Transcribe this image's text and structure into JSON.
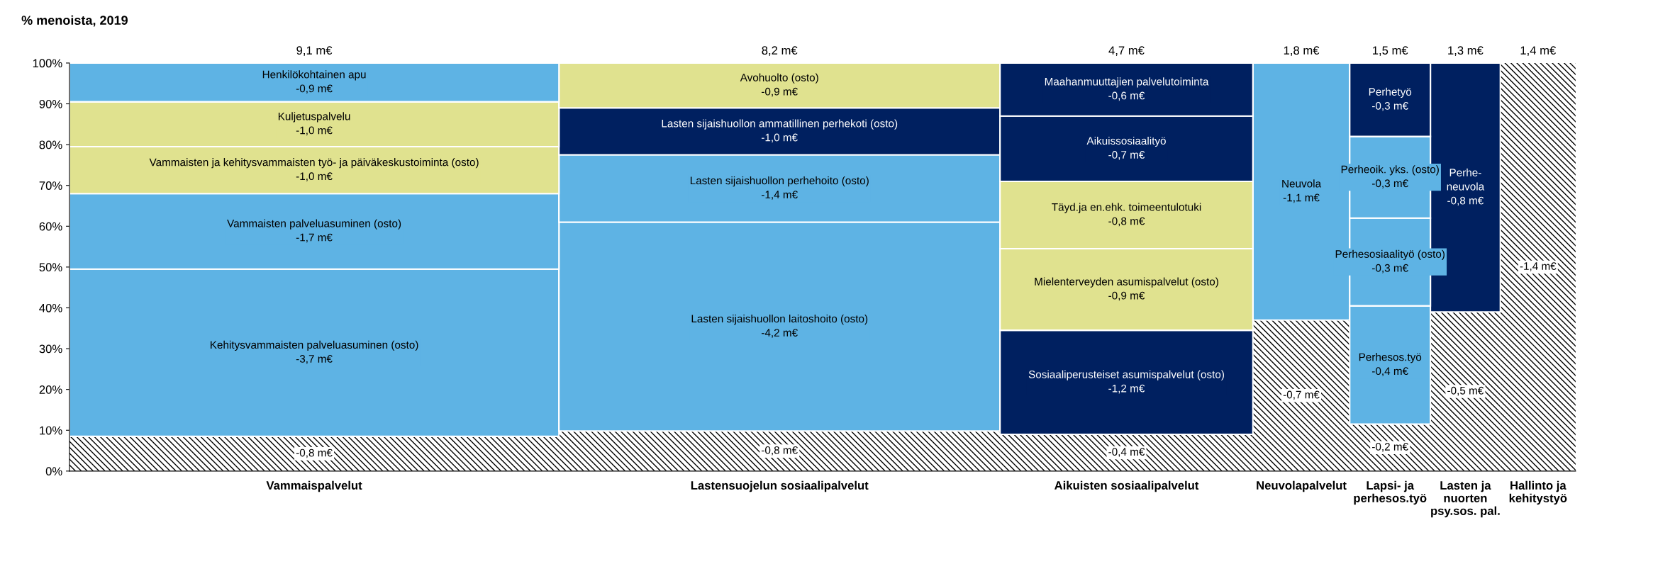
{
  "chart_data": {
    "type": "bar",
    "stacked": true,
    "title": "% menoista, 2019",
    "categories": [
      "Vammaispalvelut",
      "Lastensuojelun sosiaalipalvelut",
      "Aikuisten sosiaalipalvelut",
      "Neuvolapalvelut",
      "Lapsi- ja\nperhesos.työ",
      "Lasten ja\nnuorten\npsy.sos. pal.",
      "Hallinto ja\nkehitystyö"
    ],
    "ylim": [
      0,
      100
    ],
    "yticks": [
      {
        "value": 0,
        "label": "0%"
      },
      {
        "value": 10,
        "label": "10%"
      },
      {
        "value": 20,
        "label": "20%"
      },
      {
        "value": 30,
        "label": "30%"
      },
      {
        "value": 40,
        "label": "40%"
      },
      {
        "value": 50,
        "label": "50%"
      },
      {
        "value": 60,
        "label": "60%"
      },
      {
        "value": 70,
        "label": "70%"
      },
      {
        "value": 80,
        "label": "80%"
      },
      {
        "value": 90,
        "label": "90%"
      },
      {
        "value": 100,
        "label": "100%"
      }
    ],
    "series": [
      {
        "values": [
          8.5,
          9.8,
          9,
          37,
          11.5,
          39,
          100
        ],
        "colors": [
          "#ffffff",
          "#ffffff",
          "#ffffff",
          "#ffffff",
          "#ffffff",
          "#ffffff",
          "#ffffff"
        ]
      },
      {
        "values": [
          41,
          51.2,
          25.5,
          63,
          29,
          61,
          null
        ],
        "colors": [
          "#5eb3e4",
          "#5eb3e4",
          "#002060",
          "#5eb3e4",
          "#5eb3e4",
          "#002060",
          null
        ]
      },
      {
        "values": [
          18.5,
          16.5,
          20,
          null,
          21.5,
          null,
          null
        ],
        "colors": [
          "#5eb3e4",
          "#5eb3e4",
          "#e0e28f",
          null,
          "#5eb3e4",
          null,
          null
        ]
      },
      {
        "values": [
          11.5,
          11.5,
          16.5,
          null,
          20,
          null,
          null
        ],
        "colors": [
          "#e0e28f",
          "#002060",
          "#e0e28f",
          null,
          "#5eb3e4",
          null,
          null
        ]
      },
      {
        "values": [
          11,
          11,
          16,
          null,
          18,
          null,
          null
        ],
        "colors": [
          "#e0e28f",
          "#e0e28f",
          "#002060",
          null,
          "#002060",
          null,
          null
        ]
      },
      {
        "values": [
          9.5,
          null,
          13,
          null,
          null,
          null,
          null
        ],
        "colors": [
          "#5eb3e4",
          null,
          "#002060",
          null,
          null,
          null,
          null
        ]
      }
    ],
    "annotations": [
      "9,1 m€",
      "8,2 m€",
      "4,7 m€",
      "1,8 m€",
      "1,5 m€",
      "1,3 m€",
      "1,4 m€",
      "-0,8 m€",
      "Kehitysvammaisten palveluasuminen (osto)\n-3,7 m€",
      "Vammaisten palveluasuminen (osto)\n-1,7 m€",
      "Vammaisten ja kehitysvammaisten työ- ja päiväkeskustoiminta (osto)\n-1,0 m€",
      "Kuljetuspalvelu\n-1,0 m€",
      "Henkilökohtainen apu\n-0,9 m€",
      "-0,8 m€",
      "Lasten sijaishuollon laitoshoito (osto)\n-4,2 m€",
      "Lasten sijaishuollon perhehoito (osto)\n-1,4 m€",
      "Lasten sijaishuollon ammatillinen perhekoti (osto)\n-1,0 m€",
      "Avohuolto (osto)\n-0,9 m€",
      "-0,4 m€",
      "Sosiaaliperusteiset asumispalvelut (osto)\n-1,2 m€",
      "Mielenterveyden asumispalvelut (osto)\n-0,9 m€",
      "Täyd.ja en.ehk. toimeentulotuki\n-0,8 m€",
      "Aikuissosiaalityö\n-0,7 m€",
      "Maahanmuuttajien palvelutoiminta\n-0,6 m€",
      "-0,7 m€",
      "Neuvola\n-1,1 m€",
      "-0,2 m€",
      "Perhesos.työ\n-0,4 m€",
      "Perhesosiaalityö (osto)\n-0,3 m€",
      "Perheoik. yks. (osto)\n-0,3 m€",
      "Perhetyö\n-0,3 m€",
      "-0,5 m€",
      "Perhe-\nneuvola\n-0,8 m€",
      "-1,4 m€"
    ]
  }
}
